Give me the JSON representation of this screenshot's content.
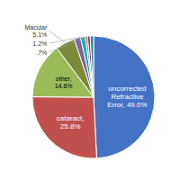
{
  "chart_data": {
    "type": "pie",
    "categories": [
      "uncorrected\nRefractive\nError, 49.0%",
      "cataract,\n25.8%",
      "other,\n14.6%",
      "Macular\n5.1%",
      null,
      "1.2%",
      null,
      ".7%",
      null
    ],
    "values": [
      49.0,
      25.8,
      14.6,
      5.1,
      1.7,
      1.2,
      0.6,
      0.7,
      0.9
    ],
    "colors": [
      "#4472C4",
      "#C0504D",
      "#9BBB59",
      "#7B8B3A",
      "#8064A2",
      "#00B0C0",
      "#E36C09",
      "#7030A0",
      "#31869B"
    ]
  }
}
